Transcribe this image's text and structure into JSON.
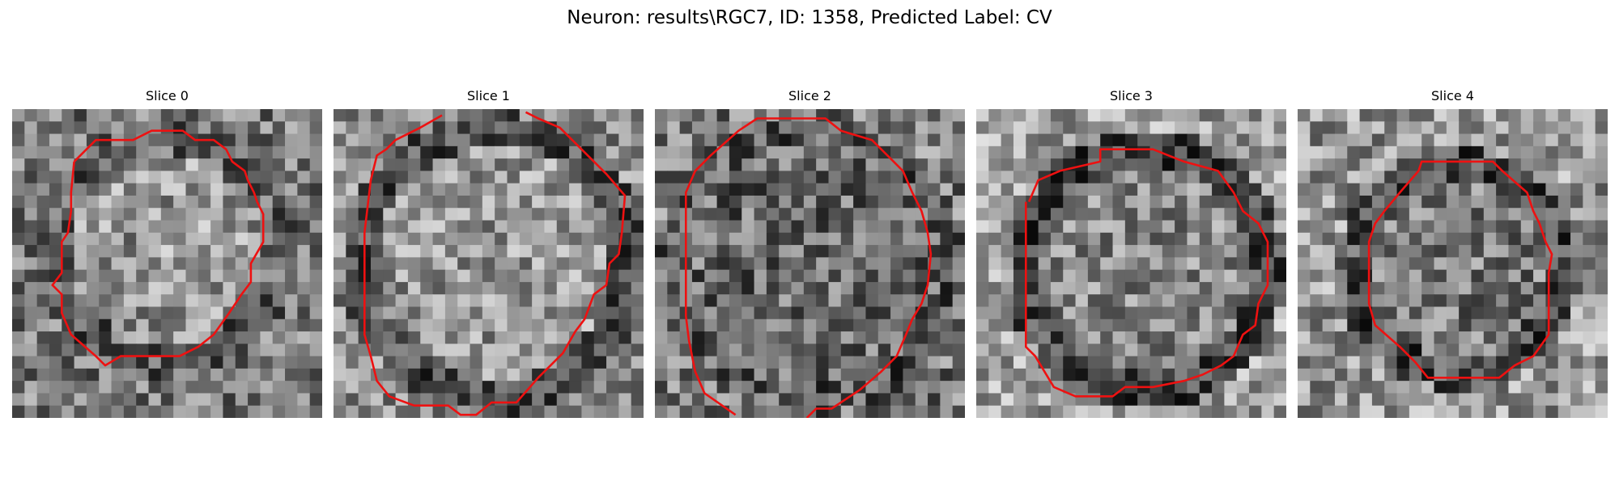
{
  "figure": {
    "title": "Neuron: results\\RGC7, ID: 1358, Predicted Label: CV"
  },
  "panels": [
    {
      "title": "Slice 0"
    },
    {
      "title": "Slice 1"
    },
    {
      "title": "Slice 2"
    },
    {
      "title": "Slice 3"
    },
    {
      "title": "Slice 4"
    }
  ],
  "colors": {
    "contour": "#ee1111",
    "image_colormap": "grayscale"
  }
}
